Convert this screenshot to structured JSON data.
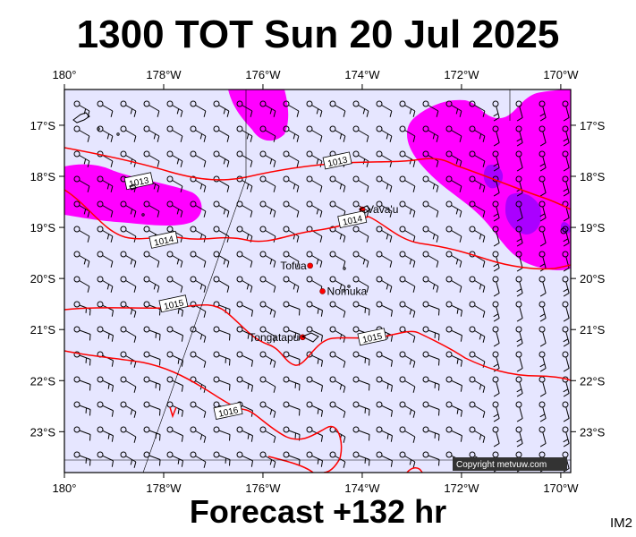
{
  "title": "1300 TOT Sun 20 Jul 2025",
  "footer": "Forecast +132 hr",
  "image_tag": "IM2",
  "copyright": "Copyright metvuw.com",
  "colors": {
    "ocean": "#e6e6ff",
    "rain_light": "#ff00ff",
    "rain_heavy": "#aa00ff",
    "isobar": "#ff0000",
    "wind": "#000000",
    "place_dot": "#ff0000"
  },
  "map": {
    "lon_range": [
      -180,
      -169.8
    ],
    "lat_range": [
      -23.8,
      -16.3
    ],
    "top_labels": [
      "180°",
      "178°W",
      "176°W",
      "174°W",
      "172°W",
      "170°W"
    ],
    "bottom_labels": [
      "180°",
      "178°W",
      "176°W",
      "174°W",
      "172°W",
      "170°W"
    ],
    "left_labels": [
      "17°S",
      "18°S",
      "19°S",
      "20°S",
      "21°S",
      "22°S",
      "23°S"
    ],
    "right_labels": [
      "17°S",
      "18°S",
      "19°S",
      "20°S",
      "21°S",
      "22°S",
      "23°S"
    ],
    "lon_ticks": [
      -180,
      -178,
      -176,
      -174,
      -172,
      -170
    ],
    "lat_ticks": [
      -17,
      -18,
      -19,
      -20,
      -21,
      -22,
      -23
    ],
    "places": [
      {
        "name": "Vava'u",
        "lon": -174.0,
        "lat": -18.65
      },
      {
        "name": "Tofua",
        "lon": -175.05,
        "lat": -19.75
      },
      {
        "name": "Nomuka",
        "lon": -174.8,
        "lat": -20.25
      },
      {
        "name": "Tongatapu",
        "lon": -175.2,
        "lat": -21.15
      }
    ],
    "isobars": [
      {
        "label": "1013",
        "lon": -174.5,
        "lat": -17.7
      },
      {
        "label": "1013",
        "lon": -178.5,
        "lat": -18.1
      },
      {
        "label": "1014",
        "lon": -174.2,
        "lat": -18.85
      },
      {
        "label": "1014",
        "lon": -178.0,
        "lat": -19.25
      },
      {
        "label": "1015",
        "lon": -177.8,
        "lat": -20.5
      },
      {
        "label": "1015",
        "lon": -173.8,
        "lat": -21.15
      },
      {
        "label": "1016",
        "lon": -176.7,
        "lat": -22.6
      }
    ]
  }
}
